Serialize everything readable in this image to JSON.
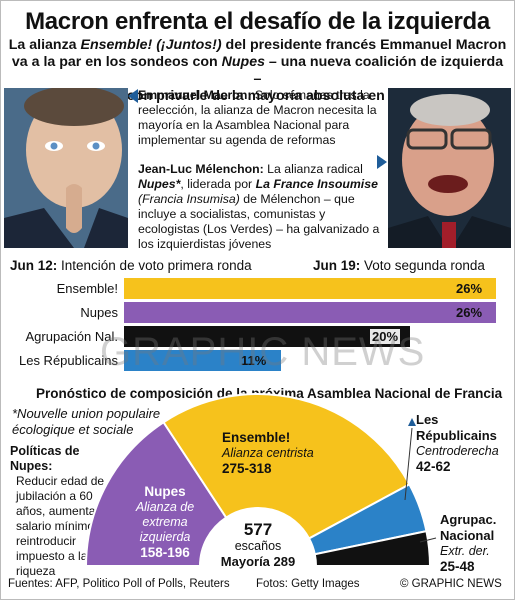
{
  "title": "Macron enfrenta el desafío de la izquierda",
  "subtitle": {
    "line1_a": "La alianza ",
    "line1_b": "Ensemble! (¡Juntos!)",
    "line1_c": " del presidente francés Emmanuel Macron",
    "line2_a": "va a la par en los sondeos con ",
    "line2_b": "Nupes",
    "line2_c": " – una nueva coalición de izquierda –",
    "line3": "que amenaza con privarle de la mayoría absoluta en el parlamento"
  },
  "bio": {
    "macron_name": "Emmanuel Macron:",
    "macron_text": " Solo semanas tras la reelección, la alianza de Macron necesita la mayoría en la Asamblea Nacional para implementar su agenda de reformas",
    "melenchon_name": "Jean-Luc Mélenchon:",
    "melenchon_t1": " La alianza radical ",
    "melenchon_nupes": "Nupes*",
    "melenchon_t2": ", liderada por ",
    "melenchon_lfi": "La France Insoumise",
    "melenchon_t3": " (Francia Insumisa)",
    "melenchon_t4": " de Mélenchon – que incluye a socialistas, comunistas y ecologistas (Los Verdes) – ha galvanizado a los izquierdistas jóvenes"
  },
  "poll": {
    "jun12_date": "Jun 12:",
    "jun12_text": " Intención de voto primera ronda",
    "jun19_date": "Jun 19:",
    "jun19_text": " Voto segunda ronda"
  },
  "chart_data": [
    {
      "type": "bar",
      "orientation": "horizontal",
      "unit": "%",
      "categories": [
        "Ensemble!",
        "Nupes",
        "Agrupación Nal.",
        "Les Républicains"
      ],
      "values": [
        26,
        26,
        20,
        11
      ],
      "value_labels": [
        "26%",
        "26%",
        "20%",
        "11%"
      ],
      "colors": [
        "#f6c21c",
        "#8a5cb4",
        "#111111",
        "#2b82c8"
      ],
      "xlim": [
        0,
        26
      ]
    },
    {
      "type": "pie",
      "subtype": "hemicycle",
      "title": "Pronóstico de composición de la próxima Asamblea Nacional de Francia",
      "total_seats": 577,
      "total_label": "escaños",
      "majority_label": "Mayoría",
      "majority": 289,
      "series": [
        {
          "name": "Nupes",
          "description": "Alianza de extrema izquierda",
          "range_label": "158-196",
          "low": 158,
          "high": 196,
          "color": "#8a5cb4"
        },
        {
          "name": "Ensemble!",
          "description": "Alianza centrista",
          "range_label": "275-318",
          "low": 275,
          "high": 318,
          "color": "#f6c21c"
        },
        {
          "name": "Les Républicains",
          "description": "Centroderecha",
          "range_label": "42-62",
          "low": 42,
          "high": 62,
          "color": "#2b82c8"
        },
        {
          "name": "Agrupac. Nacional",
          "description": "Extr. der.",
          "range_label": "25-48",
          "low": 25,
          "high": 48,
          "color": "#111111"
        }
      ]
    }
  ],
  "parliament": {
    "note": "*Nouvelle union populaire écologique et sociale",
    "policy_title": "Políticas de Nupes:",
    "policy_body": "Reducir edad de jubilación a 60 años, aumentar salario mínimo, reintroducir impuesto a la riqueza",
    "nupes_name": "Nupes",
    "nupes_desc": "Alianza de extrema izquierda",
    "nupes_range": "158-196",
    "ens_name": "Ensemble!",
    "ens_desc": "Alianza centrista",
    "ens_range": "275-318",
    "lr_name": "Les Républicains",
    "lr_desc": "Centroderecha",
    "lr_range": "42-62",
    "rn_name": "Agrupac. Nacional",
    "rn_desc": "Extr. der.",
    "rn_range": "25-48",
    "total": "577",
    "total_label": "escaños",
    "majority": "Mayoría 289"
  },
  "footer": {
    "sources": "Fuentes: AFP, Politico Poll of Polls, Reuters",
    "photos": "Fotos: Getty Images",
    "brand": "© GRAPHIC NEWS"
  },
  "watermark": "GRAPHIC NEWS",
  "colors": {
    "ensemble": "#f6c21c",
    "nupes": "#8a5cb4",
    "rn": "#111111",
    "lr": "#2b82c8"
  }
}
